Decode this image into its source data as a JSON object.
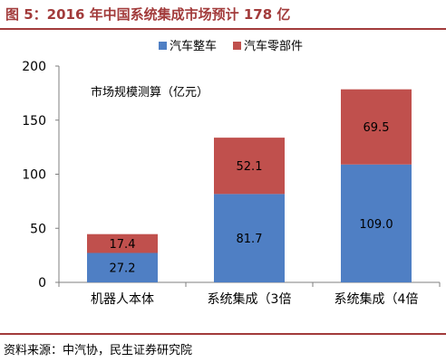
{
  "header": {
    "title": "图 5：2016 年中国系统集成市场预计 178 亿"
  },
  "footer": {
    "source": "资料来源：中汽协，民生证券研究院"
  },
  "chart_data": {
    "type": "bar",
    "stacked": true,
    "title": "",
    "annotation": "市场规模测算（亿元）",
    "categories": [
      "机器人本体",
      "系统集成（3倍",
      "系统集成（4倍"
    ],
    "series": [
      {
        "name": "汽车整车",
        "values": [
          27.2,
          81.7,
          109.0
        ],
        "labels": [
          "27.2",
          "81.7",
          "109.0"
        ],
        "color": "#4f7fc4"
      },
      {
        "name": "汽车零部件",
        "values": [
          17.4,
          52.1,
          69.5
        ],
        "labels": [
          "17.4",
          "52.1",
          "69.5"
        ],
        "color": "#c0504d"
      }
    ],
    "yticks": [
      "0",
      "50",
      "100",
      "150",
      "200"
    ],
    "ylim": [
      0,
      200
    ],
    "grid": false,
    "legend": "top"
  }
}
